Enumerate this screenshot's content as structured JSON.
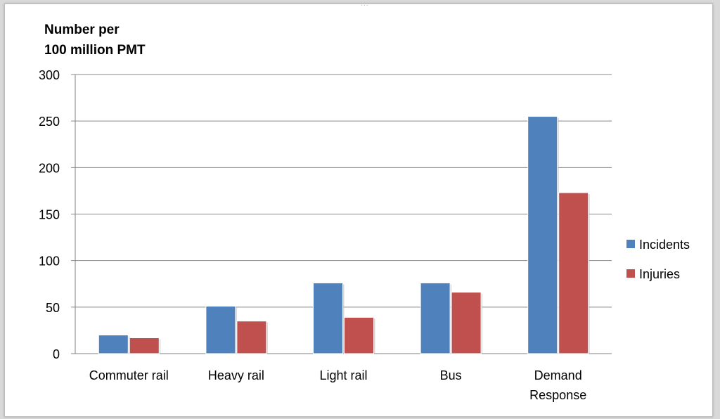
{
  "chart_data": {
    "type": "bar",
    "ylabel_lines": [
      "Number per",
      "100 million PMT"
    ],
    "categories": [
      [
        "Commuter rail"
      ],
      [
        "Heavy rail"
      ],
      [
        "Light rail"
      ],
      [
        "Bus"
      ],
      [
        "Demand",
        "Response"
      ]
    ],
    "series": [
      {
        "name": "Incidents",
        "color": "#4f81bd",
        "values": [
          20,
          51,
          76,
          76,
          255
        ]
      },
      {
        "name": "Injuries",
        "color": "#c0504d",
        "values": [
          17,
          35,
          39,
          66,
          173
        ]
      }
    ],
    "ylim": [
      0,
      300
    ],
    "yticks": [
      0,
      50,
      100,
      150,
      200,
      250,
      300
    ],
    "grid": true,
    "legend_position": "right"
  }
}
